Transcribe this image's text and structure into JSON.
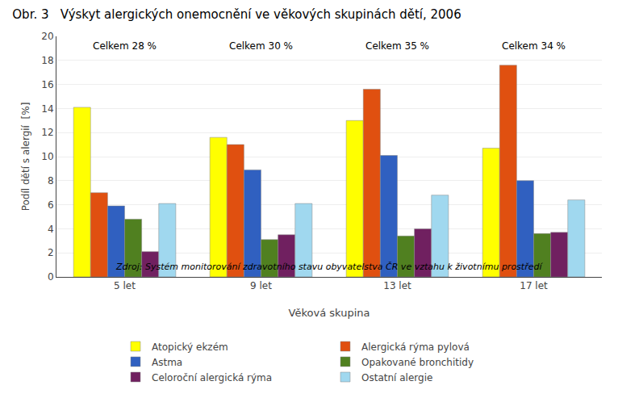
{
  "chart_data": {
    "type": "bar",
    "title": "Obr. 3   Výskyt alergických onemocnění ve věkových skupinách dětí, 2006",
    "xlabel": "Věková skupina",
    "ylabel": "Podíl dětí s alergií  [%]",
    "categories": [
      "5 let",
      "9 let",
      "13 let",
      "17 let"
    ],
    "series": [
      {
        "name": "Atopický ekzém",
        "color": "#FFFF00",
        "values": [
          14.1,
          11.6,
          13.0,
          10.7
        ]
      },
      {
        "name": "Alergická rýma pylová",
        "color": "#E05010",
        "values": [
          7.0,
          11.0,
          15.6,
          17.6
        ]
      },
      {
        "name": "Astma",
        "color": "#3060C0",
        "values": [
          5.9,
          8.9,
          10.1,
          8.0
        ]
      },
      {
        "name": "Opakované bronchitidy",
        "color": "#508020",
        "values": [
          4.8,
          3.1,
          3.4,
          3.6
        ]
      },
      {
        "name": "Celoroční alergická rýma",
        "color": "#702060",
        "values": [
          2.1,
          3.5,
          4.0,
          3.7
        ]
      },
      {
        "name": "Ostatní alergie",
        "color": "#A0D8EF",
        "values": [
          6.1,
          6.1,
          6.8,
          6.4
        ]
      }
    ],
    "ylim": [
      0,
      20
    ],
    "yticks": [
      0,
      2,
      4,
      6,
      8,
      10,
      12,
      14,
      16,
      18,
      20
    ],
    "grid": true,
    "legend": "bottom",
    "annotations": [
      {
        "category": "5 let",
        "text": "Celkem 28 %"
      },
      {
        "category": "9 let",
        "text": "Celkem 30 %"
      },
      {
        "category": "13 let",
        "text": "Celkem 35 %"
      },
      {
        "category": "17 let",
        "text": "Celkem 34 %"
      }
    ],
    "source": "Zdroj: Systém monitorování zdravotního stavu obyvatelstva ČR ve vztahu k životnímu prostředí"
  }
}
